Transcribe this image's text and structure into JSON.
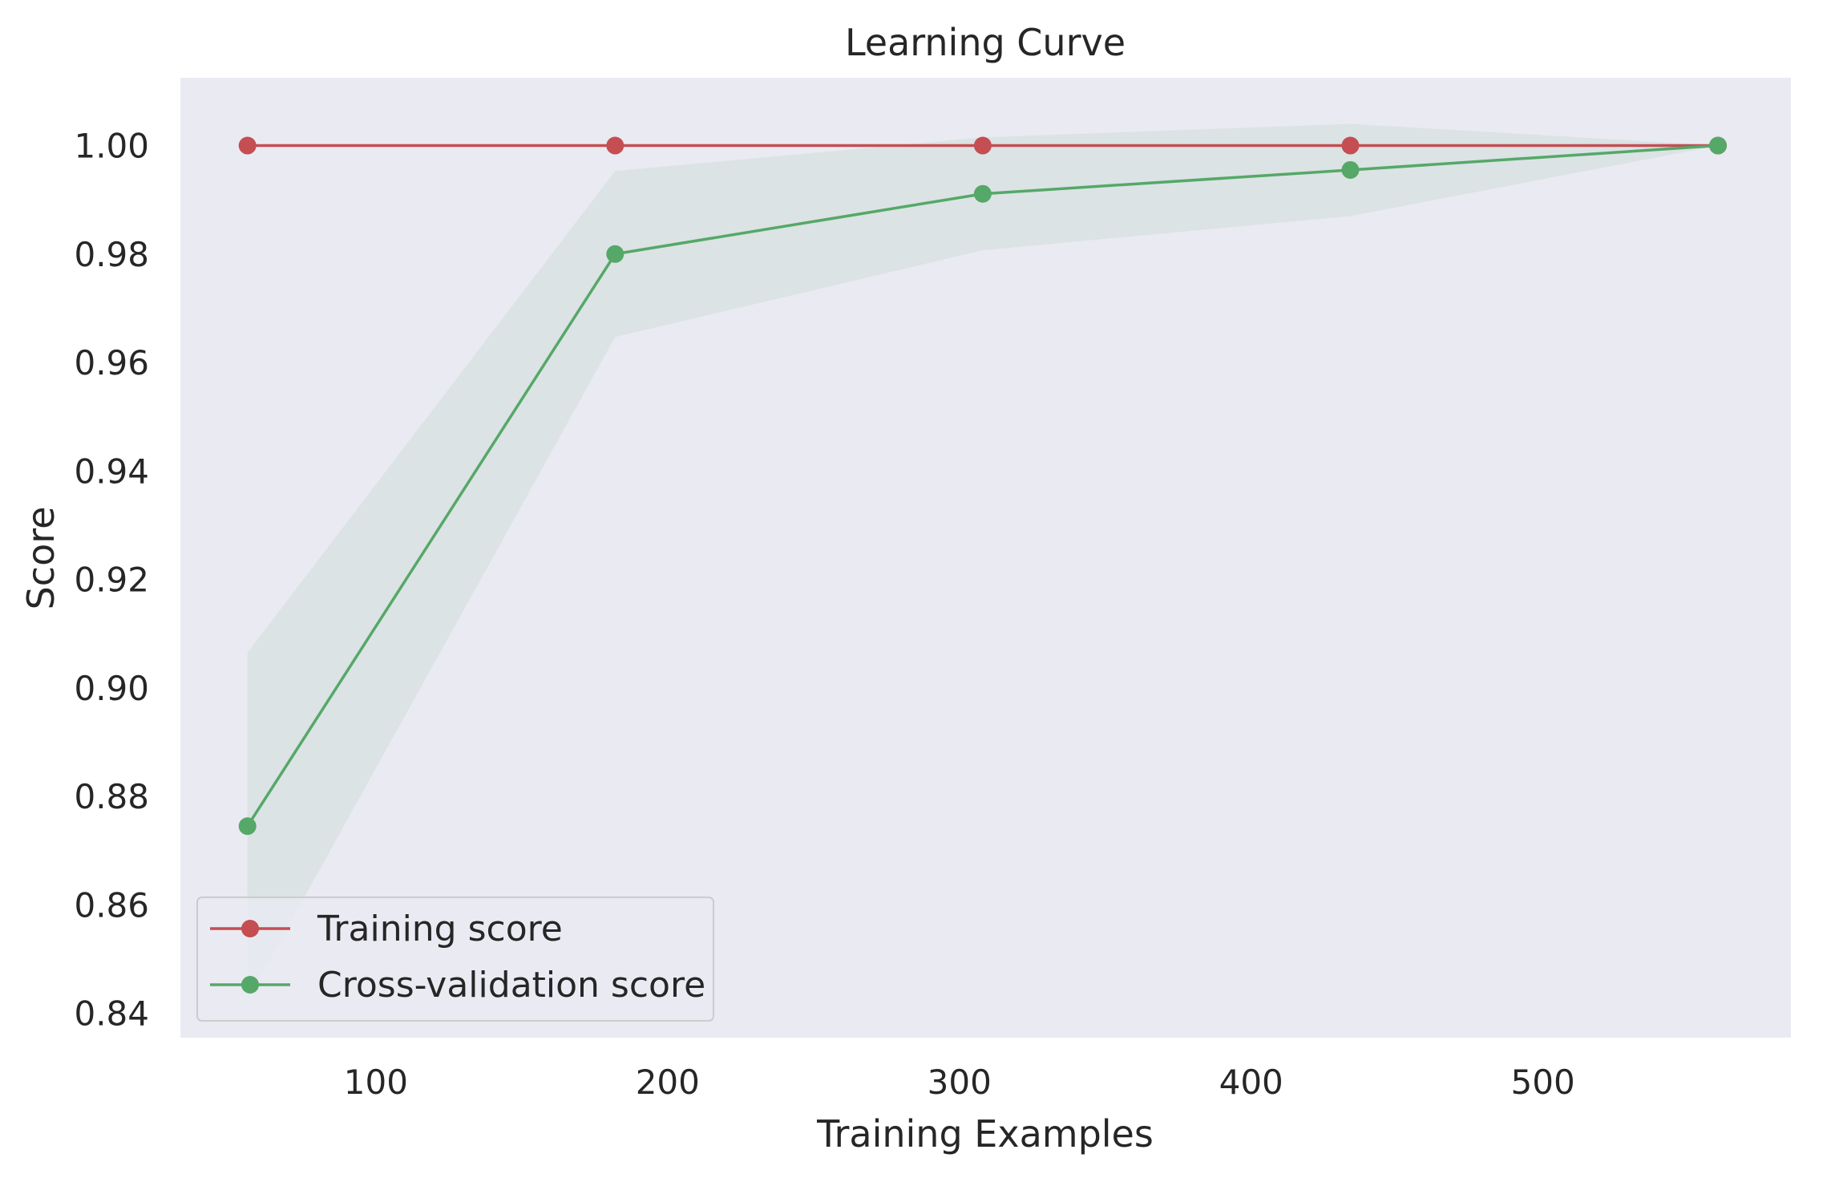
{
  "chart_data": {
    "type": "line",
    "title": "Learning Curve",
    "xlabel": "Training Examples",
    "ylabel": "Score",
    "xlim": [
      33,
      585
    ],
    "ylim": [
      0.8355,
      1.0125
    ],
    "xticks": [
      100,
      200,
      300,
      400,
      500
    ],
    "yticks": [
      0.84,
      0.86,
      0.88,
      0.9,
      0.92,
      0.94,
      0.96,
      0.98,
      1.0
    ],
    "xtick_labels": [
      "100",
      "200",
      "300",
      "400",
      "500"
    ],
    "ytick_labels": [
      "0.84",
      "0.86",
      "0.88",
      "0.90",
      "0.92",
      "0.94",
      "0.96",
      "0.98",
      "1.00"
    ],
    "grid": false,
    "legend_position": "lower-left",
    "x": [
      56,
      182,
      308,
      434,
      560
    ],
    "series": [
      {
        "name": "Training score",
        "color": "#c44e52",
        "values": [
          1.0,
          1.0,
          1.0,
          1.0,
          1.0
        ],
        "band_lower": [
          1.0,
          1.0,
          1.0,
          1.0,
          1.0
        ],
        "band_upper": [
          1.0,
          1.0,
          1.0,
          1.0,
          1.0
        ]
      },
      {
        "name": "Cross-validation score",
        "color": "#55a868",
        "values": [
          0.8745,
          0.98,
          0.9911,
          0.9955,
          1.0
        ],
        "band_lower": [
          0.8425,
          0.9647,
          0.9807,
          0.987,
          1.0
        ],
        "band_upper": [
          0.9065,
          0.9953,
          1.0015,
          1.004,
          1.0
        ]
      }
    ]
  }
}
